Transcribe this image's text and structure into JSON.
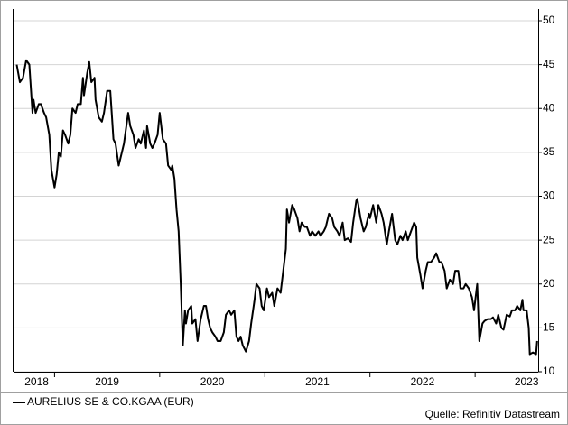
{
  "chart_data": {
    "type": "line",
    "x": [
      2018.64,
      2018.67,
      2018.7,
      2018.73,
      2018.76,
      2018.79,
      2018.8,
      2018.82,
      2018.85,
      2018.87,
      2018.9,
      2018.92,
      2018.95,
      2018.97,
      2019.0,
      2019.02,
      2019.04,
      2019.06,
      2019.08,
      2019.1,
      2019.13,
      2019.15,
      2019.17,
      2019.2,
      2019.22,
      2019.25,
      2019.27,
      2019.28,
      2019.31,
      2019.33,
      2019.35,
      2019.38,
      2019.39,
      2019.42,
      2019.45,
      2019.47,
      2019.5,
      2019.53,
      2019.56,
      2019.58,
      2019.61,
      2019.64,
      2019.66,
      2019.7,
      2019.72,
      2019.75,
      2019.77,
      2019.8,
      2019.82,
      2019.85,
      2019.87,
      2019.88,
      2019.91,
      2019.93,
      2019.95,
      2019.98,
      2020.0,
      2020.03,
      2020.06,
      2020.08,
      2020.11,
      2020.12,
      2020.14,
      2020.16,
      2020.18,
      2020.2,
      2020.22,
      2020.24,
      2020.25,
      2020.27,
      2020.3,
      2020.31,
      2020.34,
      2020.36,
      2020.39,
      2020.42,
      2020.44,
      2020.46,
      2020.48,
      2020.5,
      2020.53,
      2020.55,
      2020.58,
      2020.61,
      2020.63,
      2020.66,
      2020.68,
      2020.71,
      2020.73,
      2020.75,
      2020.77,
      2020.79,
      2020.82,
      2020.85,
      2020.87,
      2020.9,
      2020.92,
      2020.95,
      2020.97,
      2020.99,
      2021.02,
      2021.04,
      2021.07,
      2021.09,
      2021.12,
      2021.15,
      2021.17,
      2021.2,
      2021.21,
      2021.23,
      2021.26,
      2021.28,
      2021.31,
      2021.33,
      2021.35,
      2021.38,
      2021.4,
      2021.43,
      2021.45,
      2021.48,
      2021.51,
      2021.53,
      2021.56,
      2021.58,
      2021.61,
      2021.64,
      2021.66,
      2021.69,
      2021.71,
      2021.74,
      2021.76,
      2021.79,
      2021.82,
      2021.84,
      2021.87,
      2021.88,
      2021.91,
      2021.94,
      2021.96,
      2021.99,
      2022.0,
      2022.03,
      2022.06,
      2022.08,
      2022.11,
      2022.13,
      2022.16,
      2022.18,
      2022.21,
      2022.24,
      2022.26,
      2022.29,
      2022.31,
      2022.34,
      2022.36,
      2022.39,
      2022.42,
      2022.44,
      2022.45,
      2022.48,
      2022.5,
      2022.53,
      2022.55,
      2022.58,
      2022.61,
      2022.63,
      2022.66,
      2022.68,
      2022.71,
      2022.73,
      2022.76,
      2022.79,
      2022.81,
      2022.84,
      2022.86,
      2022.89,
      2022.91,
      2022.94,
      2022.97,
      2022.99,
      2023.02,
      2023.04,
      2023.07,
      2023.09,
      2023.12,
      2023.15,
      2023.17,
      2023.2,
      2023.22,
      2023.25,
      2023.27,
      2023.3,
      2023.33,
      2023.35,
      2023.38,
      2023.4,
      2023.43,
      2023.45,
      2023.46,
      2023.49,
      2023.51,
      2023.52,
      2023.55,
      2023.58,
      2023.59
    ],
    "series": [
      {
        "name": "AURELIUS SE & CO.KGAA (EUR)",
        "color": "#000000",
        "values": [
          45,
          43,
          43.5,
          45.5,
          45,
          39.5,
          41,
          39.5,
          40.5,
          40.5,
          39.5,
          39,
          37,
          33,
          31,
          32.5,
          35,
          34.5,
          37.5,
          37,
          36,
          37,
          40,
          39.5,
          40.5,
          40.5,
          43.5,
          41.5,
          44,
          45.3,
          43,
          43.5,
          41,
          39,
          38.5,
          39.5,
          42,
          42,
          36.5,
          36,
          33.5,
          35,
          36,
          39.5,
          38,
          37,
          35.5,
          36.5,
          36,
          37.5,
          35.5,
          38,
          36,
          35.5,
          36,
          37,
          39.5,
          36.5,
          36,
          33.5,
          33,
          33.5,
          32,
          28.5,
          26,
          20,
          13,
          17,
          15.5,
          17,
          17.5,
          15.5,
          16,
          13.5,
          16,
          17.5,
          17.5,
          16,
          15,
          14.5,
          14,
          13.5,
          13.5,
          14.5,
          16.5,
          17,
          16.5,
          17,
          14,
          13.5,
          14,
          13,
          12.3,
          13.5,
          15.5,
          18,
          20,
          19.5,
          17.5,
          17,
          19.5,
          18.5,
          19,
          17.5,
          19.5,
          19,
          21,
          24,
          28.5,
          27,
          29,
          28.5,
          27.5,
          26,
          27,
          26.5,
          26.5,
          25.5,
          26,
          25.5,
          26,
          25.5,
          26,
          26.5,
          28,
          27.5,
          26.5,
          26,
          25.5,
          27,
          25,
          25.2,
          24.8,
          27,
          29.5,
          29.7,
          27.5,
          26,
          26.5,
          28,
          27.5,
          29,
          27,
          29,
          28,
          27,
          24.5,
          26,
          28,
          25,
          24.5,
          25.5,
          25,
          26,
          25,
          26,
          27,
          26.5,
          23,
          21,
          19.5,
          21.5,
          22.5,
          22.5,
          23,
          23.5,
          22.5,
          22.5,
          21.5,
          19.5,
          20.5,
          20,
          21.5,
          21.5,
          19.5,
          19.5,
          20,
          19.5,
          18.5,
          17,
          20,
          13.5,
          15.5,
          15.8,
          16,
          16,
          16.2,
          15.5,
          16.5,
          15,
          14.8,
          16.5,
          16.3,
          17,
          17,
          17.5,
          17,
          18.2,
          17,
          17,
          15,
          12,
          12.2,
          12,
          13.5
        ]
      }
    ],
    "xlim": [
      2018.61,
      2023.6
    ],
    "xticks": [
      {
        "value": 2018.83,
        "label": "2018"
      },
      {
        "value": 2019.5,
        "label": "2019"
      },
      {
        "value": 2020.5,
        "label": "2020"
      },
      {
        "value": 2021.5,
        "label": "2021"
      },
      {
        "value": 2022.5,
        "label": "2022"
      },
      {
        "value": 2023.49,
        "label": "2023"
      }
    ],
    "xtick_marks": [
      2019,
      2020,
      2021,
      2022,
      2023
    ],
    "ylim": [
      10,
      50
    ],
    "yticks": [
      10,
      15,
      20,
      25,
      30,
      35,
      40,
      45,
      50
    ],
    "grid": true,
    "source": "Quelle: Refinitiv Datastream"
  }
}
